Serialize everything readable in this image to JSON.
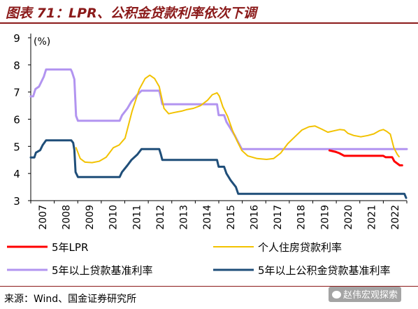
{
  "figure_title": "图表 71：LPR、公积金贷款利率依次下调",
  "source_note": "来源：Wind、国金证券研究所",
  "watermark": "赵伟宏观探索",
  "chart_data": {
    "type": "line",
    "unit_label": "(%)",
    "ylim": [
      3,
      9
    ],
    "yticks": [
      3,
      4,
      5,
      6,
      7,
      8,
      9
    ],
    "xlim": [
      2007.0,
      2022.95
    ],
    "xticks": [
      "2007",
      "2008",
      "2009",
      "2010",
      "2011",
      "2012",
      "2013",
      "2014",
      "2015",
      "2016",
      "2017",
      "2018",
      "2019",
      "2020",
      "2021",
      "2022"
    ],
    "grid": false,
    "legend_position": "bottom",
    "series": [
      {
        "name": "5年LPR",
        "color": "#ff0000",
        "points": [
          [
            2019.67,
            4.85
          ],
          [
            2019.92,
            4.8
          ],
          [
            2020.08,
            4.75
          ],
          [
            2020.3,
            4.65
          ],
          [
            2021.95,
            4.65
          ],
          [
            2022.05,
            4.6
          ],
          [
            2022.33,
            4.6
          ],
          [
            2022.42,
            4.45
          ],
          [
            2022.65,
            4.3
          ],
          [
            2022.75,
            4.3
          ]
        ]
      },
      {
        "name": "个人住房贷款利率",
        "color": "#f2c200",
        "points": [
          [
            2008.92,
            4.95
          ],
          [
            2009.1,
            4.55
          ],
          [
            2009.3,
            4.42
          ],
          [
            2009.6,
            4.4
          ],
          [
            2009.9,
            4.45
          ],
          [
            2010.2,
            4.6
          ],
          [
            2010.5,
            4.95
          ],
          [
            2010.75,
            5.05
          ],
          [
            2011.0,
            5.3
          ],
          [
            2011.3,
            6.3
          ],
          [
            2011.6,
            7.1
          ],
          [
            2011.85,
            7.5
          ],
          [
            2012.05,
            7.62
          ],
          [
            2012.25,
            7.5
          ],
          [
            2012.45,
            7.2
          ],
          [
            2012.65,
            6.4
          ],
          [
            2012.85,
            6.2
          ],
          [
            2013.1,
            6.25
          ],
          [
            2013.4,
            6.3
          ],
          [
            2013.6,
            6.35
          ],
          [
            2013.9,
            6.4
          ],
          [
            2014.2,
            6.5
          ],
          [
            2014.5,
            6.7
          ],
          [
            2014.7,
            6.9
          ],
          [
            2014.9,
            6.97
          ],
          [
            2015.0,
            6.85
          ],
          [
            2015.15,
            6.45
          ],
          [
            2015.35,
            6.1
          ],
          [
            2015.55,
            5.6
          ],
          [
            2015.75,
            5.2
          ],
          [
            2015.95,
            4.85
          ],
          [
            2016.2,
            4.65
          ],
          [
            2016.6,
            4.55
          ],
          [
            2017.0,
            4.52
          ],
          [
            2017.3,
            4.55
          ],
          [
            2017.6,
            4.75
          ],
          [
            2017.9,
            5.1
          ],
          [
            2018.2,
            5.35
          ],
          [
            2018.5,
            5.6
          ],
          [
            2018.8,
            5.72
          ],
          [
            2019.05,
            5.75
          ],
          [
            2019.35,
            5.63
          ],
          [
            2019.6,
            5.52
          ],
          [
            2019.9,
            5.58
          ],
          [
            2020.1,
            5.62
          ],
          [
            2020.3,
            5.6
          ],
          [
            2020.45,
            5.48
          ],
          [
            2020.7,
            5.4
          ],
          [
            2021.0,
            5.35
          ],
          [
            2021.3,
            5.4
          ],
          [
            2021.55,
            5.46
          ],
          [
            2021.8,
            5.58
          ],
          [
            2021.95,
            5.62
          ],
          [
            2022.1,
            5.55
          ],
          [
            2022.25,
            5.45
          ],
          [
            2022.4,
            4.95
          ],
          [
            2022.55,
            4.7
          ],
          [
            2022.62,
            4.62
          ]
        ]
      },
      {
        "name": "5年以上贷款基准利率",
        "color": "#b294f0",
        "points": [
          [
            2007.0,
            6.84
          ],
          [
            2007.1,
            6.84
          ],
          [
            2007.2,
            7.11
          ],
          [
            2007.35,
            7.2
          ],
          [
            2007.45,
            7.38
          ],
          [
            2007.55,
            7.56
          ],
          [
            2007.65,
            7.83
          ],
          [
            2008.7,
            7.83
          ],
          [
            2008.75,
            7.74
          ],
          [
            2008.85,
            7.47
          ],
          [
            2008.92,
            6.12
          ],
          [
            2009.0,
            5.94
          ],
          [
            2010.77,
            5.94
          ],
          [
            2010.87,
            6.14
          ],
          [
            2011.1,
            6.4
          ],
          [
            2011.27,
            6.65
          ],
          [
            2011.52,
            6.9
          ],
          [
            2011.7,
            7.05
          ],
          [
            2012.45,
            7.05
          ],
          [
            2012.52,
            6.8
          ],
          [
            2012.58,
            6.55
          ],
          [
            2014.9,
            6.55
          ],
          [
            2014.97,
            6.15
          ],
          [
            2015.2,
            6.15
          ],
          [
            2015.3,
            5.9
          ],
          [
            2015.48,
            5.65
          ],
          [
            2015.65,
            5.4
          ],
          [
            2015.8,
            5.15
          ],
          [
            2015.95,
            4.9
          ],
          [
            2022.95,
            4.9
          ]
        ]
      },
      {
        "name": "5年以上公积金贷款基准利率",
        "color": "#1f4e79",
        "points": [
          [
            2007.0,
            4.59
          ],
          [
            2007.15,
            4.59
          ],
          [
            2007.22,
            4.77
          ],
          [
            2007.4,
            4.86
          ],
          [
            2007.5,
            5.04
          ],
          [
            2007.65,
            5.22
          ],
          [
            2008.72,
            5.22
          ],
          [
            2008.8,
            5.13
          ],
          [
            2008.85,
            4.86
          ],
          [
            2008.9,
            4.05
          ],
          [
            2009.0,
            3.87
          ],
          [
            2010.77,
            3.87
          ],
          [
            2010.87,
            4.05
          ],
          [
            2011.1,
            4.3
          ],
          [
            2011.27,
            4.5
          ],
          [
            2011.52,
            4.7
          ],
          [
            2011.7,
            4.9
          ],
          [
            2012.45,
            4.9
          ],
          [
            2012.52,
            4.7
          ],
          [
            2012.58,
            4.5
          ],
          [
            2014.9,
            4.5
          ],
          [
            2014.97,
            4.25
          ],
          [
            2015.2,
            4.25
          ],
          [
            2015.3,
            4.0
          ],
          [
            2015.48,
            3.75
          ],
          [
            2015.7,
            3.5
          ],
          [
            2015.8,
            3.25
          ],
          [
            2022.85,
            3.25
          ],
          [
            2022.92,
            3.1
          ]
        ]
      }
    ]
  }
}
